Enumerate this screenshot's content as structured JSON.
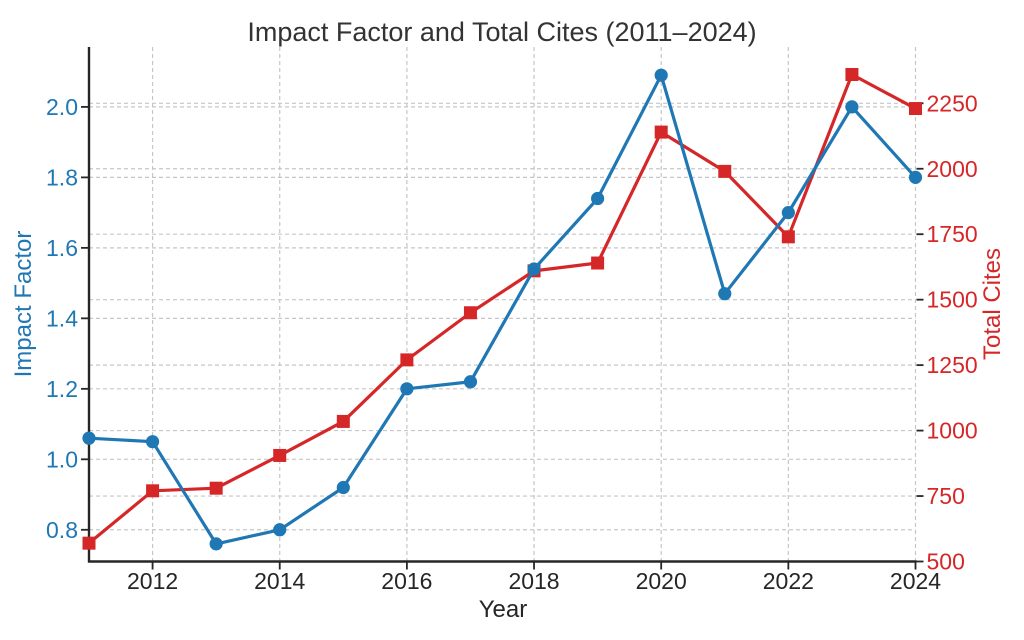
{
  "colors": {
    "impact_factor_blue": "#1f77b4",
    "total_cites_red": "#d62728",
    "axis": "#262626",
    "x_tick_label": "#262626",
    "grid": "#c6c6c6",
    "title": "#333333",
    "background": "#ffffff"
  },
  "chart_data": {
    "type": "line",
    "title": "Impact Factor and Total Cites (2011–2024)",
    "xlabel": "Year",
    "grid": true,
    "legend": "none",
    "x": [
      2011,
      2012,
      2013,
      2014,
      2015,
      2016,
      2017,
      2018,
      2019,
      2020,
      2021,
      2022,
      2023,
      2024
    ],
    "series": [
      {
        "name": "Total Cites",
        "axis": "right",
        "color": "#d62728",
        "marker": "square",
        "values": [
          570,
          770,
          780,
          905,
          1035,
          1270,
          1450,
          1610,
          1640,
          2140,
          1990,
          1740,
          2360,
          2230
        ]
      },
      {
        "name": "Impact Factor",
        "axis": "left",
        "color": "#1f77b4",
        "marker": "circle",
        "values": [
          1.06,
          1.05,
          0.76,
          0.8,
          0.92,
          1.2,
          1.22,
          1.54,
          1.74,
          2.09,
          1.47,
          1.7,
          2.0,
          1.8
        ]
      }
    ],
    "x_axis": {
      "label": "Year",
      "ticks": [
        2012,
        2014,
        2016,
        2018,
        2020,
        2022,
        2024
      ],
      "lim": [
        2011,
        2024
      ],
      "decimals": 0
    },
    "left_axis": {
      "label": "Impact Factor",
      "color": "#1f77b4",
      "ticks": [
        0.8,
        1.0,
        1.2,
        1.4,
        1.6,
        1.8,
        2.0
      ],
      "lim": [
        0.71,
        2.17
      ],
      "decimals": 1
    },
    "right_axis": {
      "label": "Total Cites",
      "color": "#d62728",
      "ticks": [
        500,
        750,
        1000,
        1250,
        1500,
        1750,
        2000,
        2250
      ],
      "lim": [
        500,
        2465
      ],
      "decimals": 0
    }
  }
}
